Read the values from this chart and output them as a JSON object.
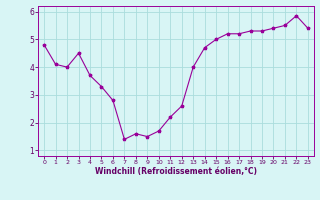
{
  "x": [
    0,
    1,
    2,
    3,
    4,
    5,
    6,
    7,
    8,
    9,
    10,
    11,
    12,
    13,
    14,
    15,
    16,
    17,
    18,
    19,
    20,
    21,
    22,
    23
  ],
  "y": [
    4.8,
    4.1,
    4.0,
    4.5,
    3.7,
    3.3,
    2.8,
    1.4,
    1.6,
    1.5,
    1.7,
    2.2,
    2.6,
    4.0,
    4.7,
    5.0,
    5.2,
    5.2,
    5.3,
    5.3,
    5.4,
    5.5,
    5.85,
    5.4
  ],
  "line_color": "#990099",
  "marker": "*",
  "bg_color": "#d8f5f5",
  "grid_color": "#aadddd",
  "xlabel": "Windchill (Refroidissement éolien,°C)",
  "xlabel_color": "#660066",
  "tick_color": "#660066",
  "ylim": [
    0.8,
    6.2
  ],
  "xlim": [
    -0.5,
    23.5
  ],
  "yticks": [
    1,
    2,
    3,
    4,
    5,
    6
  ],
  "xticks": [
    0,
    1,
    2,
    3,
    4,
    5,
    6,
    7,
    8,
    9,
    10,
    11,
    12,
    13,
    14,
    15,
    16,
    17,
    18,
    19,
    20,
    21,
    22,
    23
  ]
}
